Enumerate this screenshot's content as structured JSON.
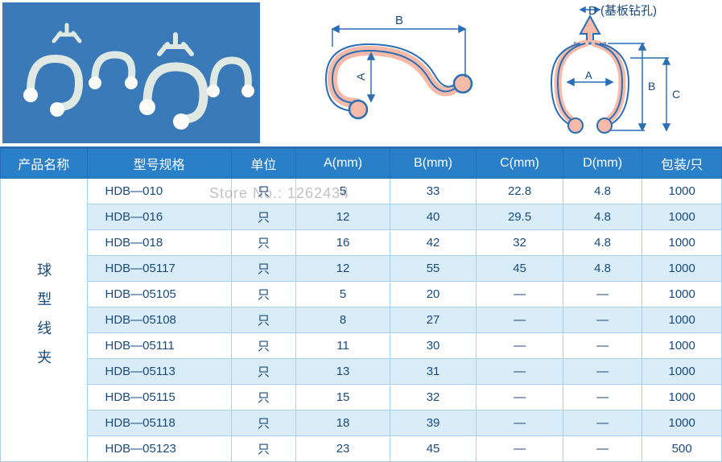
{
  "diagram": {
    "d_label": "D (基板钻孔)",
    "b_label": "B",
    "a_label": "A",
    "c_label": "C",
    "colors": {
      "outline": "#2a6fb5",
      "fill": "#f7b9a8",
      "photo_bg": "#3a7ab8",
      "clip_white": "#fbfcf8"
    }
  },
  "table": {
    "headers": {
      "name": "产品名称",
      "model": "型号规格",
      "unit": "单位",
      "a": "A(mm)",
      "b": "B(mm)",
      "c": "C(mm)",
      "d": "D(mm)",
      "pack": "包装/只"
    },
    "category": "球型线夹",
    "unit_val": "只",
    "rows": [
      {
        "model": "HDB—010",
        "a": "5",
        "b": "33",
        "c": "22.8",
        "d": "4.8",
        "pack": "1000"
      },
      {
        "model": "HDB—016",
        "a": "12",
        "b": "40",
        "c": "29.5",
        "d": "4.8",
        "pack": "1000"
      },
      {
        "model": "HDB—018",
        "a": "16",
        "b": "42",
        "c": "32",
        "d": "4.8",
        "pack": "1000"
      },
      {
        "model": "HDB—05117",
        "a": "12",
        "b": "55",
        "c": "45",
        "d": "4.8",
        "pack": "1000"
      },
      {
        "model": "HDB—05105",
        "a": "5",
        "b": "20",
        "c": "—",
        "d": "—",
        "pack": "1000"
      },
      {
        "model": "HDB—05108",
        "a": "8",
        "b": "27",
        "c": "—",
        "d": "—",
        "pack": "1000"
      },
      {
        "model": "HDB—05111",
        "a": "11",
        "b": "30",
        "c": "—",
        "d": "—",
        "pack": "1000"
      },
      {
        "model": "HDB—05113",
        "a": "13",
        "b": "31",
        "c": "—",
        "d": "—",
        "pack": "1000"
      },
      {
        "model": "HDB—05115",
        "a": "15",
        "b": "32",
        "c": "—",
        "d": "—",
        "pack": "1000"
      },
      {
        "model": "HDB—05118",
        "a": "18",
        "b": "39",
        "c": "—",
        "d": "—",
        "pack": "1000"
      },
      {
        "model": "HDB—05123",
        "a": "23",
        "b": "45",
        "c": "—",
        "d": "—",
        "pack": "500"
      }
    ],
    "colors": {
      "header_bg": "#2a7fc9",
      "header_text": "#ffffff",
      "cell_text": "#1a4a7a",
      "border": "#a9cfee",
      "alt_bg": "#d9edf9"
    },
    "col_widths_pct": [
      13,
      20,
      10,
      12,
      12,
      12,
      12,
      12
    ]
  },
  "watermark": "Store No.: 1262434"
}
